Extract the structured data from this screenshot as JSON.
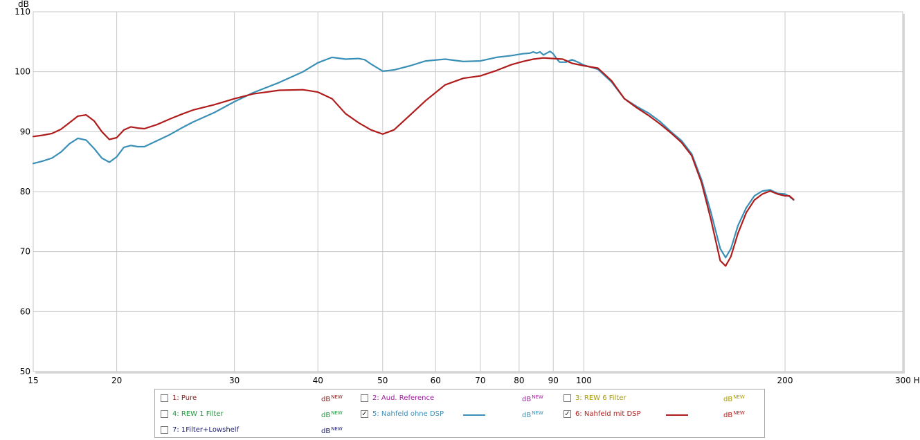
{
  "chart_data": {
    "type": "line",
    "y_unit": "dB",
    "x_unit": "Hz",
    "xscale": "log",
    "xlim": [
      15,
      300
    ],
    "ylim": [
      50,
      110
    ],
    "x_ticks": [
      {
        "value": 15,
        "label": "15"
      },
      {
        "value": 20,
        "label": "20"
      },
      {
        "value": 30,
        "label": "30"
      },
      {
        "value": 40,
        "label": "40"
      },
      {
        "value": 50,
        "label": "50"
      },
      {
        "value": 60,
        "label": "60"
      },
      {
        "value": 70,
        "label": "70"
      },
      {
        "value": 80,
        "label": "80"
      },
      {
        "value": 90,
        "label": "90"
      },
      {
        "value": 100,
        "label": "100"
      },
      {
        "value": 200,
        "label": "200"
      },
      {
        "value": 300,
        "label": "300 Hz"
      }
    ],
    "y_ticks": [
      {
        "value": 50,
        "label": "50"
      },
      {
        "value": 60,
        "label": "60"
      },
      {
        "value": 70,
        "label": "70"
      },
      {
        "value": 80,
        "label": "80"
      },
      {
        "value": 90,
        "label": "90"
      },
      {
        "value": 100,
        "label": "100"
      },
      {
        "value": 110,
        "label": "110"
      }
    ],
    "grid": true,
    "series": [
      {
        "name": "5: Nahfeld ohne DSP",
        "color": "#3a8fb7",
        "points": [
          [
            15,
            84.7
          ],
          [
            15.5,
            85.1
          ],
          [
            16,
            85.6
          ],
          [
            16.5,
            86.6
          ],
          [
            17,
            88.0
          ],
          [
            17.5,
            88.9
          ],
          [
            18,
            88.6
          ],
          [
            18.5,
            87.2
          ],
          [
            19,
            85.6
          ],
          [
            19.5,
            84.9
          ],
          [
            20,
            85.8
          ],
          [
            20.5,
            87.4
          ],
          [
            21,
            87.7
          ],
          [
            21.5,
            87.5
          ],
          [
            22,
            87.5
          ],
          [
            23,
            88.5
          ],
          [
            24,
            89.5
          ],
          [
            25,
            90.6
          ],
          [
            26,
            91.6
          ],
          [
            28,
            93.2
          ],
          [
            30,
            95.0
          ],
          [
            32,
            96.5
          ],
          [
            35,
            98.2
          ],
          [
            38,
            100.0
          ],
          [
            40,
            101.5
          ],
          [
            42,
            102.4
          ],
          [
            44,
            102.1
          ],
          [
            46,
            102.2
          ],
          [
            47,
            102.0
          ],
          [
            48,
            101.3
          ],
          [
            50,
            100.1
          ],
          [
            52,
            100.3
          ],
          [
            55,
            101.0
          ],
          [
            58,
            101.8
          ],
          [
            62,
            102.1
          ],
          [
            66,
            101.7
          ],
          [
            70,
            101.8
          ],
          [
            74,
            102.4
          ],
          [
            78,
            102.7
          ],
          [
            81,
            103.0
          ],
          [
            83,
            103.1
          ],
          [
            84,
            103.3
          ],
          [
            85,
            103.1
          ],
          [
            86,
            103.3
          ],
          [
            87,
            102.8
          ],
          [
            88,
            103.1
          ],
          [
            89,
            103.4
          ],
          [
            90,
            103.0
          ],
          [
            91,
            102.2
          ],
          [
            92,
            101.6
          ],
          [
            94,
            101.6
          ],
          [
            96,
            102.0
          ],
          [
            98,
            101.6
          ],
          [
            100,
            101.1
          ],
          [
            105,
            100.4
          ],
          [
            110,
            98.3
          ],
          [
            115,
            95.5
          ],
          [
            120,
            94.2
          ],
          [
            125,
            93.1
          ],
          [
            130,
            91.7
          ],
          [
            135,
            90.0
          ],
          [
            140,
            88.5
          ],
          [
            145,
            86.3
          ],
          [
            150,
            82.0
          ],
          [
            155,
            76.5
          ],
          [
            160,
            70.5
          ],
          [
            163,
            69.0
          ],
          [
            166,
            70.5
          ],
          [
            170,
            74.3
          ],
          [
            175,
            77.3
          ],
          [
            180,
            79.3
          ],
          [
            185,
            80.1
          ],
          [
            190,
            80.3
          ],
          [
            195,
            79.7
          ],
          [
            200,
            79.6
          ],
          [
            203,
            79.2
          ],
          [
            206,
            78.6
          ]
        ]
      },
      {
        "name": "6: Nahfeld mit DSP",
        "color": "#b01c1c",
        "points": [
          [
            15,
            89.2
          ],
          [
            15.5,
            89.4
          ],
          [
            16,
            89.7
          ],
          [
            16.5,
            90.4
          ],
          [
            17,
            91.5
          ],
          [
            17.5,
            92.6
          ],
          [
            18,
            92.8
          ],
          [
            18.5,
            91.8
          ],
          [
            19,
            90.0
          ],
          [
            19.5,
            88.7
          ],
          [
            20,
            89.0
          ],
          [
            20.5,
            90.3
          ],
          [
            21,
            90.8
          ],
          [
            21.5,
            90.6
          ],
          [
            22,
            90.5
          ],
          [
            23,
            91.2
          ],
          [
            24,
            92.1
          ],
          [
            25,
            92.9
          ],
          [
            26,
            93.6
          ],
          [
            28,
            94.5
          ],
          [
            30,
            95.5
          ],
          [
            32,
            96.3
          ],
          [
            35,
            96.9
          ],
          [
            38,
            97.0
          ],
          [
            40,
            96.6
          ],
          [
            42,
            95.5
          ],
          [
            44,
            93.0
          ],
          [
            46,
            91.5
          ],
          [
            48,
            90.3
          ],
          [
            50,
            89.6
          ],
          [
            52,
            90.3
          ],
          [
            55,
            92.8
          ],
          [
            58,
            95.2
          ],
          [
            62,
            97.8
          ],
          [
            66,
            98.9
          ],
          [
            70,
            99.3
          ],
          [
            74,
            100.2
          ],
          [
            78,
            101.2
          ],
          [
            81,
            101.7
          ],
          [
            84,
            102.1
          ],
          [
            87,
            102.3
          ],
          [
            90,
            102.2
          ],
          [
            93,
            102.1
          ],
          [
            96,
            101.4
          ],
          [
            100,
            101.0
          ],
          [
            105,
            100.6
          ],
          [
            110,
            98.5
          ],
          [
            115,
            95.5
          ],
          [
            120,
            94.0
          ],
          [
            125,
            92.7
          ],
          [
            130,
            91.3
          ],
          [
            135,
            89.8
          ],
          [
            140,
            88.2
          ],
          [
            145,
            86.0
          ],
          [
            150,
            81.5
          ],
          [
            155,
            75.3
          ],
          [
            160,
            68.5
          ],
          [
            163,
            67.6
          ],
          [
            166,
            69.2
          ],
          [
            170,
            73.0
          ],
          [
            175,
            76.5
          ],
          [
            180,
            78.6
          ],
          [
            185,
            79.6
          ],
          [
            190,
            80.1
          ],
          [
            195,
            79.6
          ],
          [
            200,
            79.3
          ],
          [
            203,
            79.3
          ],
          [
            206,
            78.7
          ]
        ]
      }
    ]
  },
  "legend": {
    "unit_main": "dB",
    "unit_sup": "NEW",
    "items": [
      {
        "label": "1: Pure",
        "checked": false,
        "color": "#8b1a1a",
        "line": false
      },
      {
        "label": "2: Aud. Reference",
        "checked": false,
        "color": "#a020a0",
        "line": false
      },
      {
        "label": "3: REW 6 Filter",
        "checked": false,
        "color": "#a89a00",
        "line": false
      },
      {
        "label": "4: REW 1 Filter",
        "checked": false,
        "color": "#1a9a3a",
        "line": false
      },
      {
        "label": "5: Nahfeld ohne DSP",
        "checked": true,
        "color": "#3a8fb7",
        "line": true
      },
      {
        "label": "6: Nahfeld mit DSP",
        "checked": true,
        "color": "#b01c1c",
        "line": true
      },
      {
        "label": "7: 1Filter+Lowshelf",
        "checked": false,
        "color": "#1a1a70",
        "line": false
      }
    ]
  }
}
